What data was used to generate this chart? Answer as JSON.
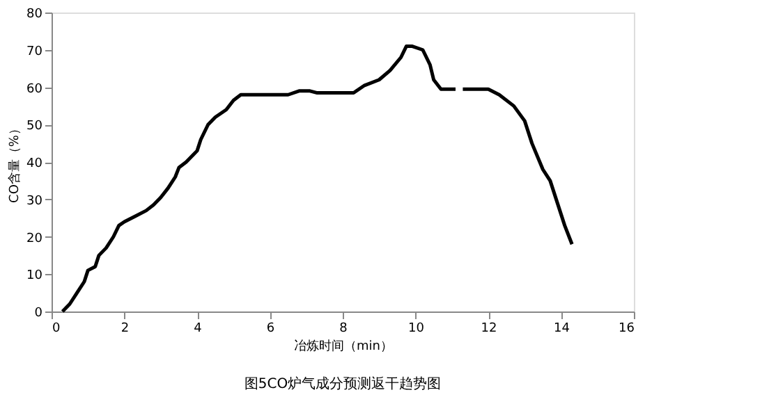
{
  "chart_data": {
    "type": "line",
    "title": "图5CO炉气成分预测返干趋势图",
    "xlabel": "冶炼时间（min）",
    "ylabel": "CO含量（%）",
    "x": [
      0.3,
      0.5,
      0.7,
      0.9,
      1.0,
      1.2,
      1.3,
      1.5,
      1.7,
      1.85,
      2.0,
      2.3,
      2.6,
      2.8,
      3.0,
      3.2,
      3.4,
      3.5,
      3.7,
      3.9,
      4.0,
      4.1,
      4.3,
      4.5,
      4.8,
      5.0,
      5.2,
      5.5,
      6.0,
      6.5,
      6.8,
      7.1,
      7.3,
      7.8,
      8.3,
      8.6,
      9.0,
      9.3,
      9.6,
      9.75,
      9.9,
      10.2,
      10.4,
      10.5,
      10.7,
      11.1,
      11.2,
      11.3,
      12.0,
      12.3,
      12.7,
      13.0,
      13.2,
      13.5,
      13.7,
      13.9,
      14.1,
      14.3
    ],
    "series": [
      {
        "color": "#000000",
        "values": [
          0,
          2,
          5,
          8,
          11,
          12,
          15,
          17,
          20,
          23,
          24,
          25.5,
          27,
          28.5,
          30.5,
          33,
          36,
          38.5,
          40,
          42,
          43,
          46,
          50,
          52,
          54,
          56.5,
          58,
          58,
          58,
          58,
          59,
          59,
          58.5,
          58.5,
          58.5,
          60.5,
          62,
          64.5,
          68,
          71,
          71,
          70,
          66,
          62,
          59.5,
          59.5,
          null,
          59.5,
          59.5,
          58,
          55,
          51,
          45,
          38,
          35,
          29,
          23,
          18
        ]
      }
    ],
    "xlim": [
      0,
      16
    ],
    "xticks": [
      0,
      2,
      4,
      6,
      8,
      10,
      12,
      14,
      16
    ],
    "ylim": [
      0,
      80
    ],
    "yticks": [
      0,
      10,
      20,
      30,
      40,
      50,
      60,
      70,
      80
    ],
    "grid": false,
    "legend": false,
    "marker": "none",
    "line_style": "solid"
  }
}
